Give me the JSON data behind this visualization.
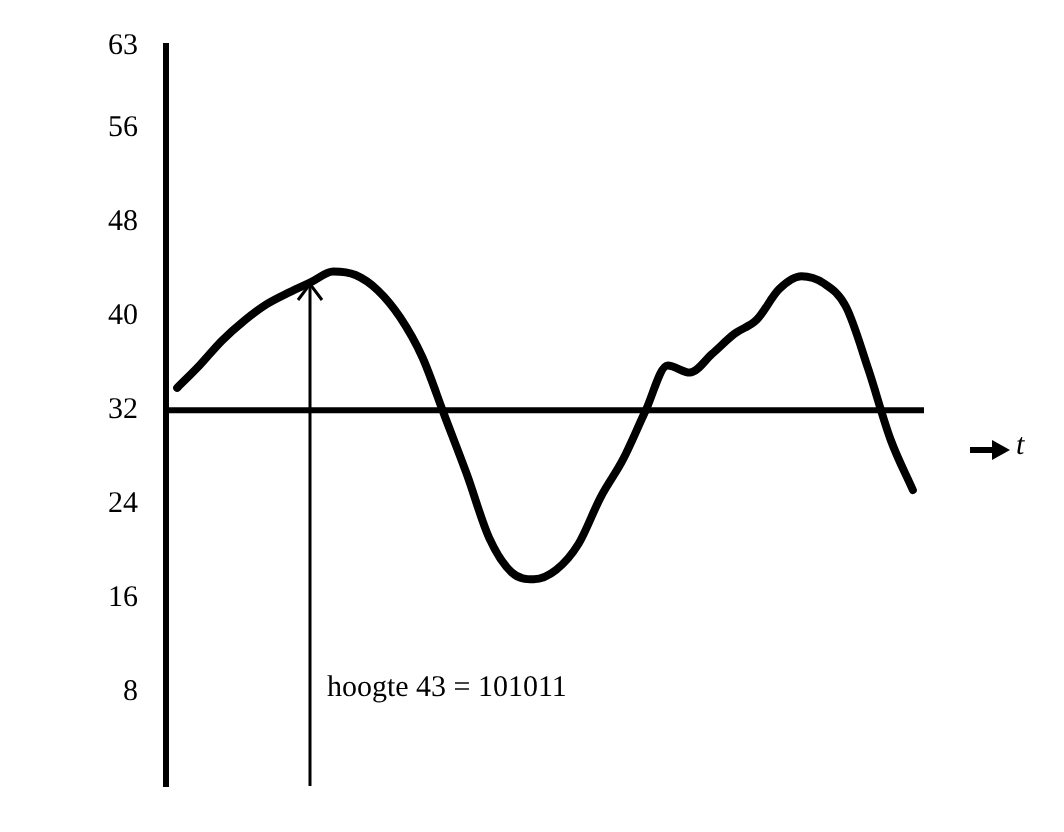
{
  "chart_data": {
    "type": "line",
    "xlabel": "t",
    "categories": [
      null,
      null,
      null,
      null,
      null,
      null,
      null,
      null,
      null,
      null,
      null,
      null,
      null,
      null,
      null,
      null,
      null,
      null,
      null,
      null,
      null,
      null,
      null,
      null,
      null,
      null,
      null,
      null,
      null,
      null,
      null,
      null,
      null,
      null
    ],
    "series": [
      {
        "color": "#000000",
        "values": [
          33.9,
          35.8,
          37.9,
          39.6,
          41.0,
          42.0,
          42.9,
          43.8,
          43.5,
          42.2,
          39.9,
          36.5,
          31.5,
          26.5,
          21.1,
          18.2,
          17.6,
          18.4,
          20.6,
          24.6,
          27.8,
          31.9,
          35.8,
          35.2,
          36.8,
          38.5,
          39.7,
          42.3,
          43.4,
          42.8,
          40.8,
          35.5,
          29.5,
          25.2
        ]
      }
    ],
    "ylim": [
      0,
      63
    ],
    "yticks": [
      8,
      16,
      24,
      32,
      40,
      48,
      56,
      63
    ],
    "grid": false,
    "legend": false,
    "tick_labels": "y",
    "marker": "none",
    "line_style": "solid",
    "ref_lines": [
      {
        "axis": "y",
        "value": 32,
        "color": "#000000",
        "line_style": "solid"
      }
    ],
    "annotations": [
      "hoogte 43 = 101011"
    ]
  }
}
